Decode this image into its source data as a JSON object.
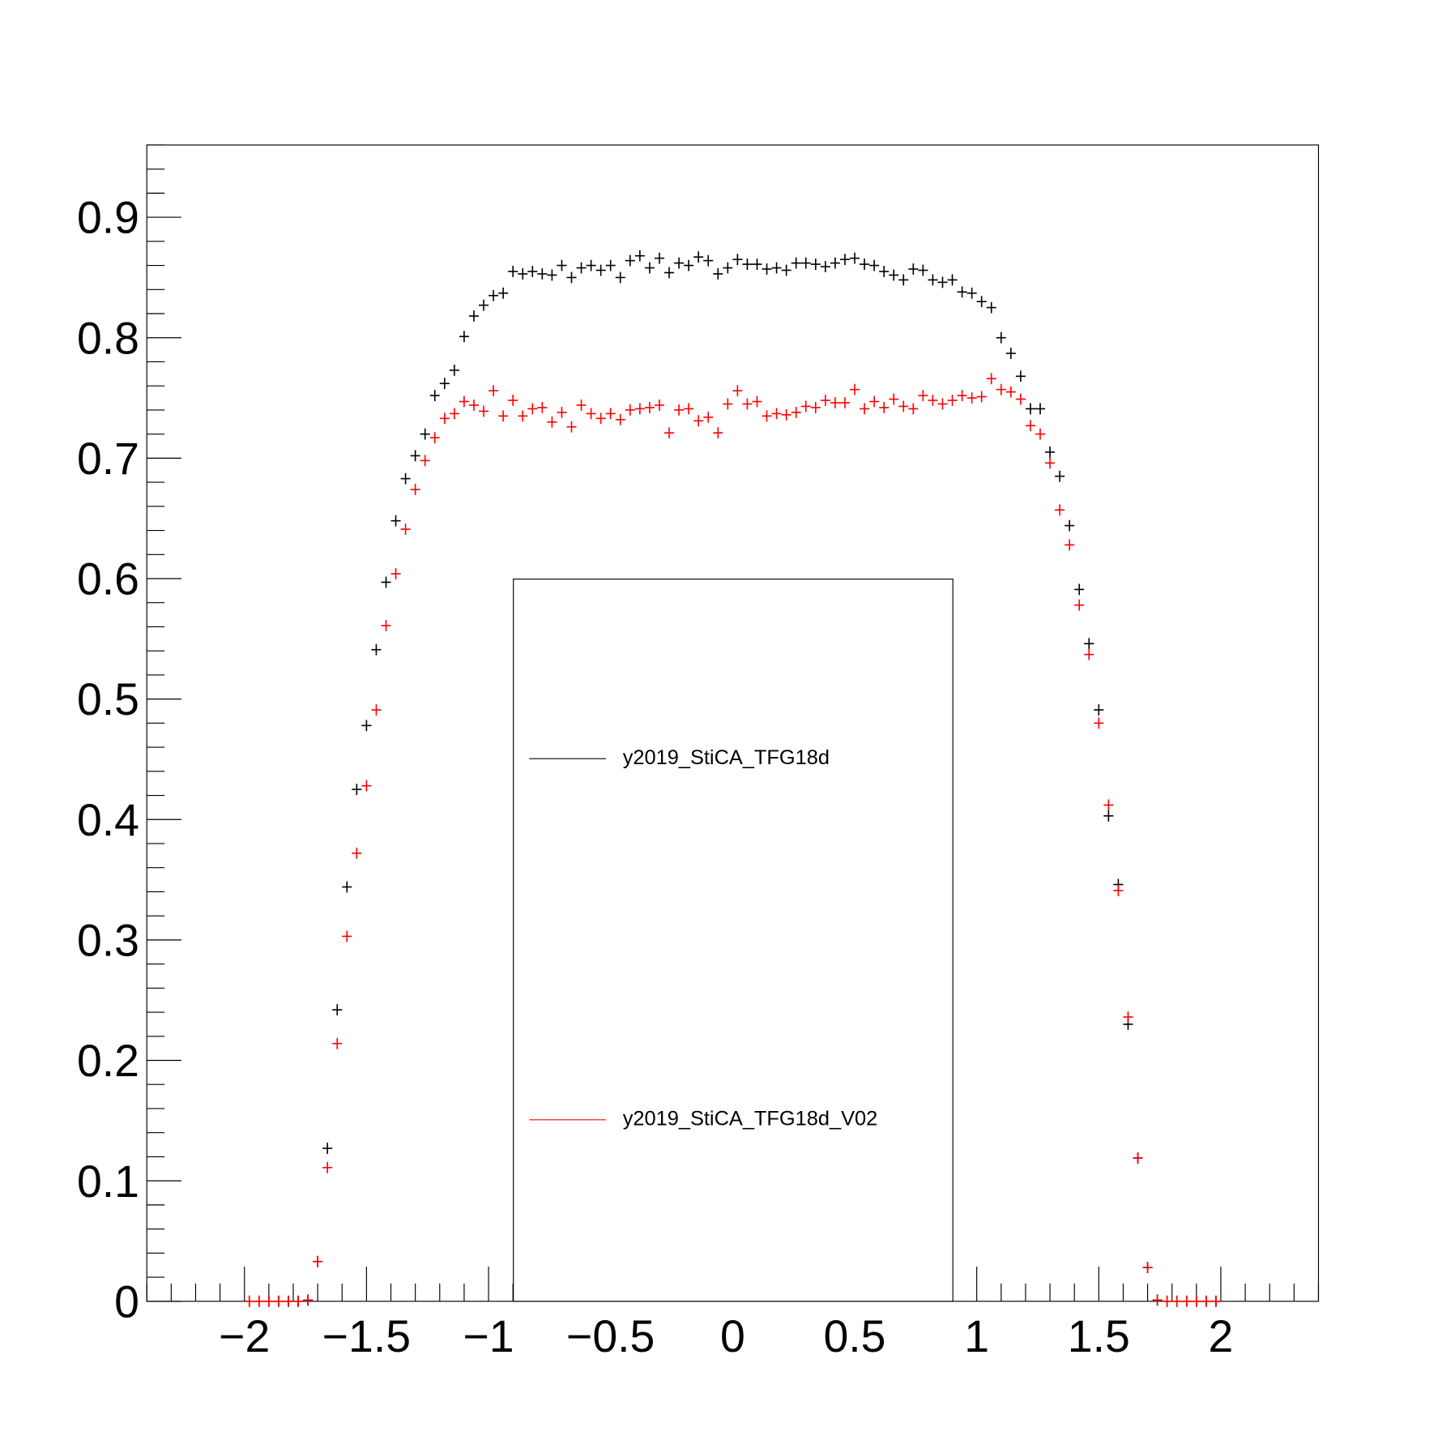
{
  "chart_data": {
    "type": "errorbar",
    "x": [
      -1.98,
      -1.94,
      -1.9,
      -1.86,
      -1.82,
      -1.78,
      -1.74,
      -1.7,
      -1.66,
      -1.62,
      -1.58,
      -1.54,
      -1.5,
      -1.46,
      -1.42,
      -1.38,
      -1.34,
      -1.3,
      -1.26,
      -1.22,
      -1.18,
      -1.14,
      -1.1,
      -1.06,
      -1.02,
      -0.98,
      -0.94,
      -0.9,
      -0.86,
      -0.82,
      -0.78,
      -0.74,
      -0.7,
      -0.66,
      -0.62,
      -0.58,
      -0.54,
      -0.5,
      -0.46,
      -0.42,
      -0.38,
      -0.34,
      -0.3,
      -0.26,
      -0.22,
      -0.18,
      -0.14,
      -0.1,
      -0.06,
      -0.02,
      0.02,
      0.06,
      0.1,
      0.14,
      0.18,
      0.22,
      0.26,
      0.3,
      0.34,
      0.38,
      0.42,
      0.46,
      0.5,
      0.54,
      0.58,
      0.62,
      0.66,
      0.7,
      0.74,
      0.78,
      0.82,
      0.86,
      0.9,
      0.94,
      0.98,
      1.02,
      1.06,
      1.1,
      1.14,
      1.18,
      1.22,
      1.26,
      1.3,
      1.34,
      1.38,
      1.42,
      1.46,
      1.5,
      1.54,
      1.58,
      1.62,
      1.66,
      1.7,
      1.74,
      1.78,
      1.82,
      1.86,
      1.9,
      1.94,
      1.98
    ],
    "series": [
      {
        "name": "y2019_StiCA_TFG18d",
        "color": "#000000",
        "values": [
          0,
          0,
          0,
          0,
          0,
          0,
          0.001,
          0.033,
          0.127,
          0.242,
          0.344,
          0.425,
          0.478,
          0.541,
          0.597,
          0.648,
          0.683,
          0.702,
          0.72,
          0.752,
          0.762,
          0.773,
          0.801,
          0.818,
          0.827,
          0.835,
          0.837,
          0.855,
          0.853,
          0.855,
          0.853,
          0.852,
          0.86,
          0.85,
          0.858,
          0.86,
          0.856,
          0.86,
          0.85,
          0.864,
          0.868,
          0.858,
          0.866,
          0.854,
          0.862,
          0.86,
          0.867,
          0.864,
          0.853,
          0.858,
          0.865,
          0.861,
          0.861,
          0.857,
          0.858,
          0.856,
          0.862,
          0.862,
          0.861,
          0.859,
          0.862,
          0.865,
          0.866,
          0.861,
          0.86,
          0.855,
          0.852,
          0.848,
          0.857,
          0.856,
          0.848,
          0.846,
          0.848,
          0.838,
          0.837,
          0.83,
          0.825,
          0.8,
          0.787,
          0.768,
          0.741,
          0.741,
          0.705,
          0.685,
          0.644,
          0.591,
          0.546,
          0.491,
          0.403,
          0.346,
          0.23,
          0.119,
          0.028,
          0.001,
          0,
          0,
          0,
          0,
          0,
          0
        ]
      },
      {
        "name": "y2019_StiCA_TFG18d_V02",
        "color": "#ff0000",
        "values": [
          0,
          0,
          0,
          0,
          0,
          0,
          0.001,
          0.033,
          0.111,
          0.214,
          0.303,
          0.372,
          0.428,
          0.491,
          0.561,
          0.604,
          0.641,
          0.674,
          0.698,
          0.717,
          0.733,
          0.737,
          0.747,
          0.744,
          0.739,
          0.756,
          0.735,
          0.748,
          0.735,
          0.741,
          0.742,
          0.73,
          0.738,
          0.726,
          0.744,
          0.737,
          0.733,
          0.737,
          0.732,
          0.74,
          0.741,
          0.742,
          0.744,
          0.721,
          0.74,
          0.741,
          0.731,
          0.734,
          0.721,
          0.745,
          0.756,
          0.745,
          0.747,
          0.735,
          0.737,
          0.736,
          0.738,
          0.743,
          0.742,
          0.748,
          0.746,
          0.746,
          0.757,
          0.741,
          0.747,
          0.742,
          0.749,
          0.743,
          0.741,
          0.752,
          0.748,
          0.745,
          0.748,
          0.752,
          0.75,
          0.751,
          0.766,
          0.757,
          0.755,
          0.749,
          0.727,
          0.72,
          0.696,
          0.657,
          0.628,
          0.578,
          0.537,
          0.48,
          0.412,
          0.341,
          0.236,
          0.119,
          0.028,
          0.001,
          0,
          0,
          0,
          0,
          0,
          0
        ]
      }
    ],
    "xlim": [
      -2.4,
      2.4
    ],
    "ylim": [
      0,
      0.96
    ],
    "xticks": [
      {
        "value": -2,
        "label": "−2"
      },
      {
        "value": -1.5,
        "label": "−1.5"
      },
      {
        "value": -1,
        "label": "−1"
      },
      {
        "value": -0.5,
        "label": "−0.5"
      },
      0,
      0.5,
      1,
      1.5,
      2
    ],
    "yticks": [
      0,
      0.1,
      0.2,
      0.3,
      0.4,
      0.5,
      0.6,
      0.7,
      0.8,
      0.9
    ]
  }
}
